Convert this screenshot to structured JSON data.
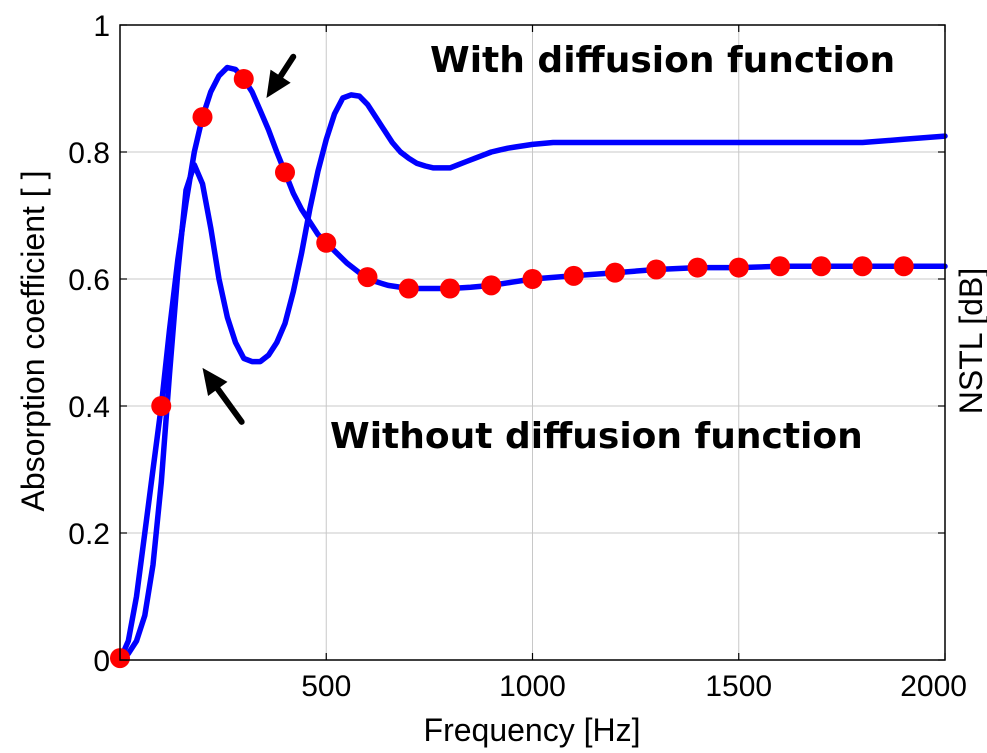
{
  "chart_data": {
    "type": "line",
    "title": "",
    "xlabel": "Frequency [Hz]",
    "ylabel": "Absorption coefficient [ ]",
    "ylabel_right": "NSTL [dB]",
    "xlim": [
      0,
      2000
    ],
    "ylim": [
      0,
      1
    ],
    "x_ticks": [
      500,
      1000,
      1500,
      2000
    ],
    "x_tick_labels": [
      "500",
      "1000",
      "1500",
      "2000"
    ],
    "y_ticks": [
      0,
      0.2,
      0.4,
      0.6,
      0.8,
      1
    ],
    "y_tick_labels": [
      "0",
      "0.2",
      "0.4",
      "0.6",
      "0.8",
      "1"
    ],
    "grid": true,
    "colors": {
      "line": "#0000ff",
      "marker": "#ff0000",
      "arrow": "#000000"
    },
    "series": [
      {
        "line": true,
        "x": [
          0,
          20,
          40,
          60,
          80,
          100,
          120,
          140,
          160,
          180,
          200,
          220,
          240,
          260,
          280,
          300,
          320,
          340,
          360,
          380,
          400,
          420,
          440,
          460,
          480,
          500,
          520,
          540,
          560,
          580,
          600,
          620,
          640,
          660,
          680,
          700,
          720,
          740,
          760,
          780,
          800,
          820,
          840,
          860,
          880,
          900,
          920,
          940,
          960,
          980,
          1000,
          1050,
          1100,
          1150,
          1200,
          1250,
          1300,
          1400,
          1500,
          1600,
          1700,
          1800,
          1900,
          2000
        ],
        "y": [
          0.0,
          0.01,
          0.03,
          0.07,
          0.15,
          0.28,
          0.45,
          0.61,
          0.74,
          0.78,
          0.75,
          0.68,
          0.6,
          0.54,
          0.5,
          0.475,
          0.47,
          0.47,
          0.48,
          0.5,
          0.53,
          0.58,
          0.64,
          0.71,
          0.77,
          0.82,
          0.86,
          0.885,
          0.89,
          0.888,
          0.875,
          0.855,
          0.835,
          0.815,
          0.8,
          0.79,
          0.782,
          0.778,
          0.775,
          0.775,
          0.775,
          0.78,
          0.785,
          0.79,
          0.795,
          0.8,
          0.803,
          0.806,
          0.808,
          0.81,
          0.812,
          0.815,
          0.815,
          0.815,
          0.815,
          0.815,
          0.815,
          0.815,
          0.815,
          0.815,
          0.815,
          0.815,
          0.82,
          0.825
        ]
      },
      {
        "line": true,
        "x": [
          0,
          20,
          40,
          60,
          80,
          100,
          120,
          140,
          160,
          180,
          200,
          220,
          240,
          260,
          280,
          300,
          320,
          340,
          360,
          380,
          400,
          420,
          440,
          460,
          480,
          500,
          550,
          600,
          650,
          700,
          750,
          800,
          850,
          900,
          950,
          1000,
          1100,
          1200,
          1300,
          1400,
          1500,
          1600,
          1700,
          1800,
          1900,
          2000
        ],
        "y": [
          0.0,
          0.03,
          0.1,
          0.2,
          0.3,
          0.4,
          0.52,
          0.63,
          0.72,
          0.8,
          0.855,
          0.895,
          0.92,
          0.933,
          0.93,
          0.915,
          0.895,
          0.865,
          0.835,
          0.8,
          0.768,
          0.735,
          0.71,
          0.69,
          0.67,
          0.657,
          0.625,
          0.6,
          0.59,
          0.585,
          0.585,
          0.585,
          0.587,
          0.59,
          0.595,
          0.6,
          0.605,
          0.61,
          0.615,
          0.618,
          0.618,
          0.62,
          0.62,
          0.62,
          0.62,
          0.62
        ]
      },
      {
        "markers": true,
        "x": [
          0,
          100,
          200,
          300,
          400,
          500,
          600,
          700,
          800,
          900,
          1000,
          1100,
          1200,
          1300,
          1400,
          1500,
          1600,
          1700,
          1800,
          1900
        ],
        "y": [
          0.003,
          0.4,
          0.855,
          0.915,
          0.768,
          0.657,
          0.603,
          0.585,
          0.585,
          0.59,
          0.6,
          0.605,
          0.61,
          0.615,
          0.618,
          0.618,
          0.62,
          0.62,
          0.62,
          0.62
        ]
      }
    ],
    "annotations": [
      {
        "text": "With diffusion function",
        "arrow_from": [
          420,
          0.95
        ],
        "arrow_to": [
          355,
          0.885
        ]
      },
      {
        "text": "Without diffusion function",
        "arrow_from": [
          295,
          0.375
        ],
        "arrow_to": [
          200,
          0.46
        ]
      }
    ]
  }
}
